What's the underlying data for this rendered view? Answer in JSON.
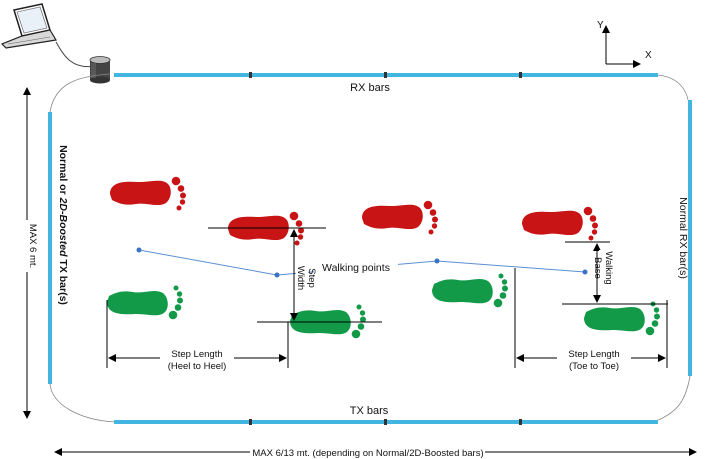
{
  "labels": {
    "rx_bars": "RX bars",
    "tx_bars": "TX bars",
    "left_bars": "Normal or 2D-Boosted TX bar(s)",
    "left_bars_a": "Normal or ",
    "left_bars_b": "2D-Boosted",
    "left_bars_c": " TX bar(s)",
    "right_bars": "Normal RX bar(s)",
    "max_height": "MAX 6 mt.",
    "max_width": "MAX 6/13 mt. (depending on Normal/2D-Boosted bars)",
    "walking_points": "Walking points",
    "step_width_1": "Step",
    "step_width_2": "Width",
    "walking_base_1": "Walking",
    "walking_base_2": "Base",
    "step_length_heel_1": "Step Length",
    "step_length_heel_2": "(Heel to Heel)",
    "step_length_toe_1": "Step Length",
    "step_length_toe_2": "(Toe to Toe)",
    "axis_x": "X",
    "axis_y": "Y"
  },
  "colors": {
    "bar": "#41b6e0",
    "red_foot": "#c81414",
    "green_foot": "#129a48",
    "walk_line": "#5b8fd4",
    "walk_point": "#3a72c8"
  },
  "icons": {
    "laptop": "laptop-icon",
    "hub": "cylinder-hub-icon"
  }
}
